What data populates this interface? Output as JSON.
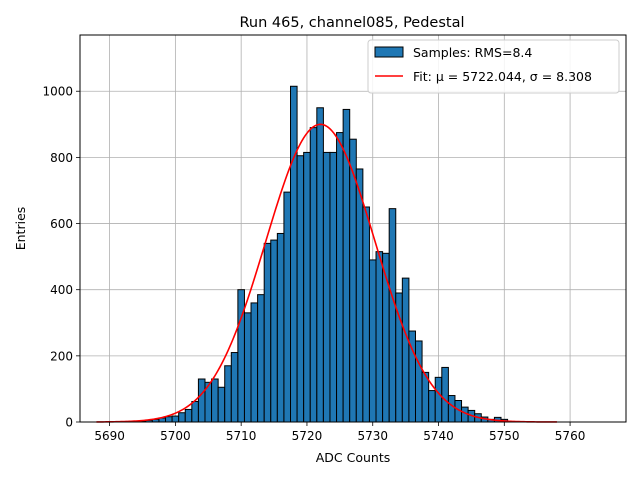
{
  "chart_data": {
    "type": "bar",
    "title": "Run 465, channel085, Pedestal",
    "xlabel": "ADC Counts",
    "ylabel": "Entries",
    "xlim": [
      5685.5,
      5768.5
    ],
    "ylim": [
      0,
      1170
    ],
    "xticks": [
      5690,
      5700,
      5710,
      5720,
      5730,
      5740,
      5750,
      5760
    ],
    "yticks": [
      0,
      200,
      400,
      600,
      800,
      1000
    ],
    "grid": true,
    "legend_position": "top-right",
    "bin_width": 1,
    "series": [
      {
        "name": "Samples: RMS=8.4",
        "kind": "histogram",
        "color": "#1f77b4",
        "edge_color": "#000000",
        "x": [
          5695,
          5696,
          5697,
          5698,
          5699,
          5700,
          5701,
          5702,
          5703,
          5704,
          5705,
          5706,
          5707,
          5708,
          5709,
          5710,
          5711,
          5712,
          5713,
          5714,
          5715,
          5716,
          5717,
          5718,
          5719,
          5720,
          5721,
          5722,
          5723,
          5724,
          5725,
          5726,
          5727,
          5728,
          5729,
          5730,
          5731,
          5732,
          5733,
          5734,
          5735,
          5736,
          5737,
          5738,
          5739,
          5740,
          5741,
          5742,
          5743,
          5744,
          5745,
          5746,
          5747,
          5748,
          5749,
          5750
        ],
        "values": [
          2,
          5,
          8,
          12,
          16,
          18,
          28,
          38,
          62,
          130,
          120,
          130,
          105,
          170,
          210,
          400,
          330,
          360,
          385,
          540,
          550,
          570,
          695,
          1015,
          805,
          815,
          890,
          950,
          815,
          815,
          875,
          945,
          855,
          765,
          650,
          490,
          515,
          510,
          645,
          390,
          435,
          275,
          245,
          150,
          95,
          135,
          165,
          80,
          65,
          45,
          35,
          25,
          15,
          8,
          14,
          8
        ]
      },
      {
        "name": "Fit: μ = 5722.044, σ = 8.308",
        "kind": "fit",
        "color": "#ff0000",
        "mu": 5722.044,
        "sigma": 8.308,
        "amplitude": 900,
        "x_range": [
          5688,
          5758
        ]
      }
    ]
  }
}
